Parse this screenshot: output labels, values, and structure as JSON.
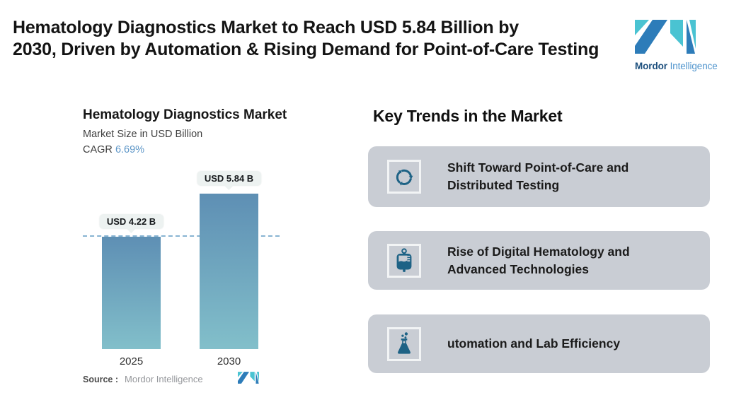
{
  "header": {
    "title_line1": "Hematology Diagnostics Market to Reach USD 5.84 Billion by",
    "title_line2": "2030, Driven by Automation & Rising Demand for Point-of-Care Testing",
    "brand": {
      "name_bold": "Mordor",
      "name_light": "Intelligence"
    }
  },
  "chart": {
    "title": "Hematology Diagnostics Market",
    "subtitle": "Market Size in USD Billion",
    "cagr_label": "CAGR",
    "cagr_value": "6.69%",
    "bars": [
      {
        "year": "2025",
        "label": "USD 4.22 B",
        "value": 4.22
      },
      {
        "year": "2030",
        "label": "USD 5.84 B",
        "value": 5.84
      }
    ],
    "source_label": "Source :",
    "source_value": "Mordor Intelligence"
  },
  "chart_data": {
    "type": "bar",
    "categories": [
      "2025",
      "2030"
    ],
    "values": [
      4.22,
      5.84
    ],
    "data_labels": [
      "USD 4.22 B",
      "USD 5.84 B"
    ],
    "title": "Hematology Diagnostics Market",
    "subtitle": "Market Size in USD Billion",
    "cagr": "6.69%",
    "unit": "USD Billion",
    "reference_line": 4.22,
    "grid": "off",
    "legend": "none",
    "source": "Mordor Intelligence"
  },
  "trends": {
    "heading": "Key Trends in the Market",
    "cards": [
      {
        "icon": "recycle-arrows-icon",
        "lines": [
          "Shift Toward Point-of-Care and",
          "Distributed Testing"
        ]
      },
      {
        "icon": "blood-bag-icon",
        "lines": [
          "Rise of Digital Hematology and",
          "Advanced Technologies"
        ]
      },
      {
        "icon": "lab-flask-icon",
        "lines": [
          "utomation and Lab Efficiency"
        ]
      }
    ]
  },
  "colors": {
    "teal": "#4ac3d2",
    "blue": "#2d7cb9",
    "icon_blue": "#1d6285",
    "card_bg": "#c9cdd4",
    "accent_blue": "#5f97c8",
    "bar_top": "#5e8fb4",
    "bar_bottom": "#82bfca",
    "pill_bg": "#edf2f1",
    "dash": "#74a7cb"
  }
}
